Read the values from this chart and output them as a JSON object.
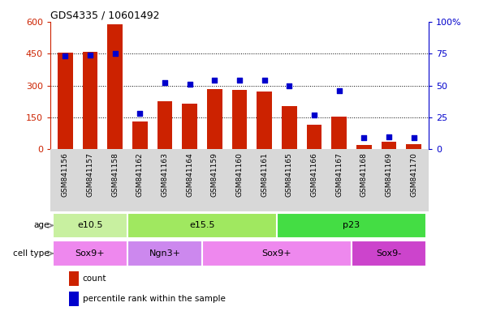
{
  "title": "GDS4335 / 10601492",
  "samples": [
    "GSM841156",
    "GSM841157",
    "GSM841158",
    "GSM841162",
    "GSM841163",
    "GSM841164",
    "GSM841159",
    "GSM841160",
    "GSM841161",
    "GSM841165",
    "GSM841166",
    "GSM841167",
    "GSM841168",
    "GSM841169",
    "GSM841170"
  ],
  "counts": [
    455,
    460,
    590,
    130,
    225,
    215,
    285,
    280,
    270,
    205,
    115,
    155,
    20,
    35,
    25
  ],
  "percentiles": [
    73,
    74,
    75,
    28,
    52,
    51,
    54,
    54,
    54,
    50,
    27,
    46,
    9,
    10,
    9
  ],
  "ylim_left": [
    0,
    600
  ],
  "ylim_right": [
    0,
    100
  ],
  "yticks_left": [
    0,
    150,
    300,
    450,
    600
  ],
  "yticks_right": [
    0,
    25,
    50,
    75,
    100
  ],
  "bar_color": "#cc2200",
  "scatter_color": "#0000cc",
  "age_groups": [
    {
      "label": "e10.5",
      "start": 0,
      "end": 3,
      "color": "#c8f0a0"
    },
    {
      "label": "e15.5",
      "start": 3,
      "end": 9,
      "color": "#a0e860"
    },
    {
      "label": "p23",
      "start": 9,
      "end": 15,
      "color": "#44dd44"
    }
  ],
  "cell_groups": [
    {
      "label": "Sox9+",
      "start": 0,
      "end": 3,
      "color": "#ee88ee"
    },
    {
      "label": "Ngn3+",
      "start": 3,
      "end": 6,
      "color": "#cc88ee"
    },
    {
      "label": "Sox9+",
      "start": 6,
      "end": 12,
      "color": "#ee88ee"
    },
    {
      "label": "Sox9-",
      "start": 12,
      "end": 15,
      "color": "#cc44cc"
    }
  ],
  "age_label": "age",
  "cell_type_label": "cell type",
  "legend_count_label": "count",
  "legend_pct_label": "percentile rank within the sample",
  "bar_color_hex": "#cc2200",
  "right_axis_color": "#0000cc",
  "xtick_bg": "#d8d8d8",
  "plot_bg": "white"
}
